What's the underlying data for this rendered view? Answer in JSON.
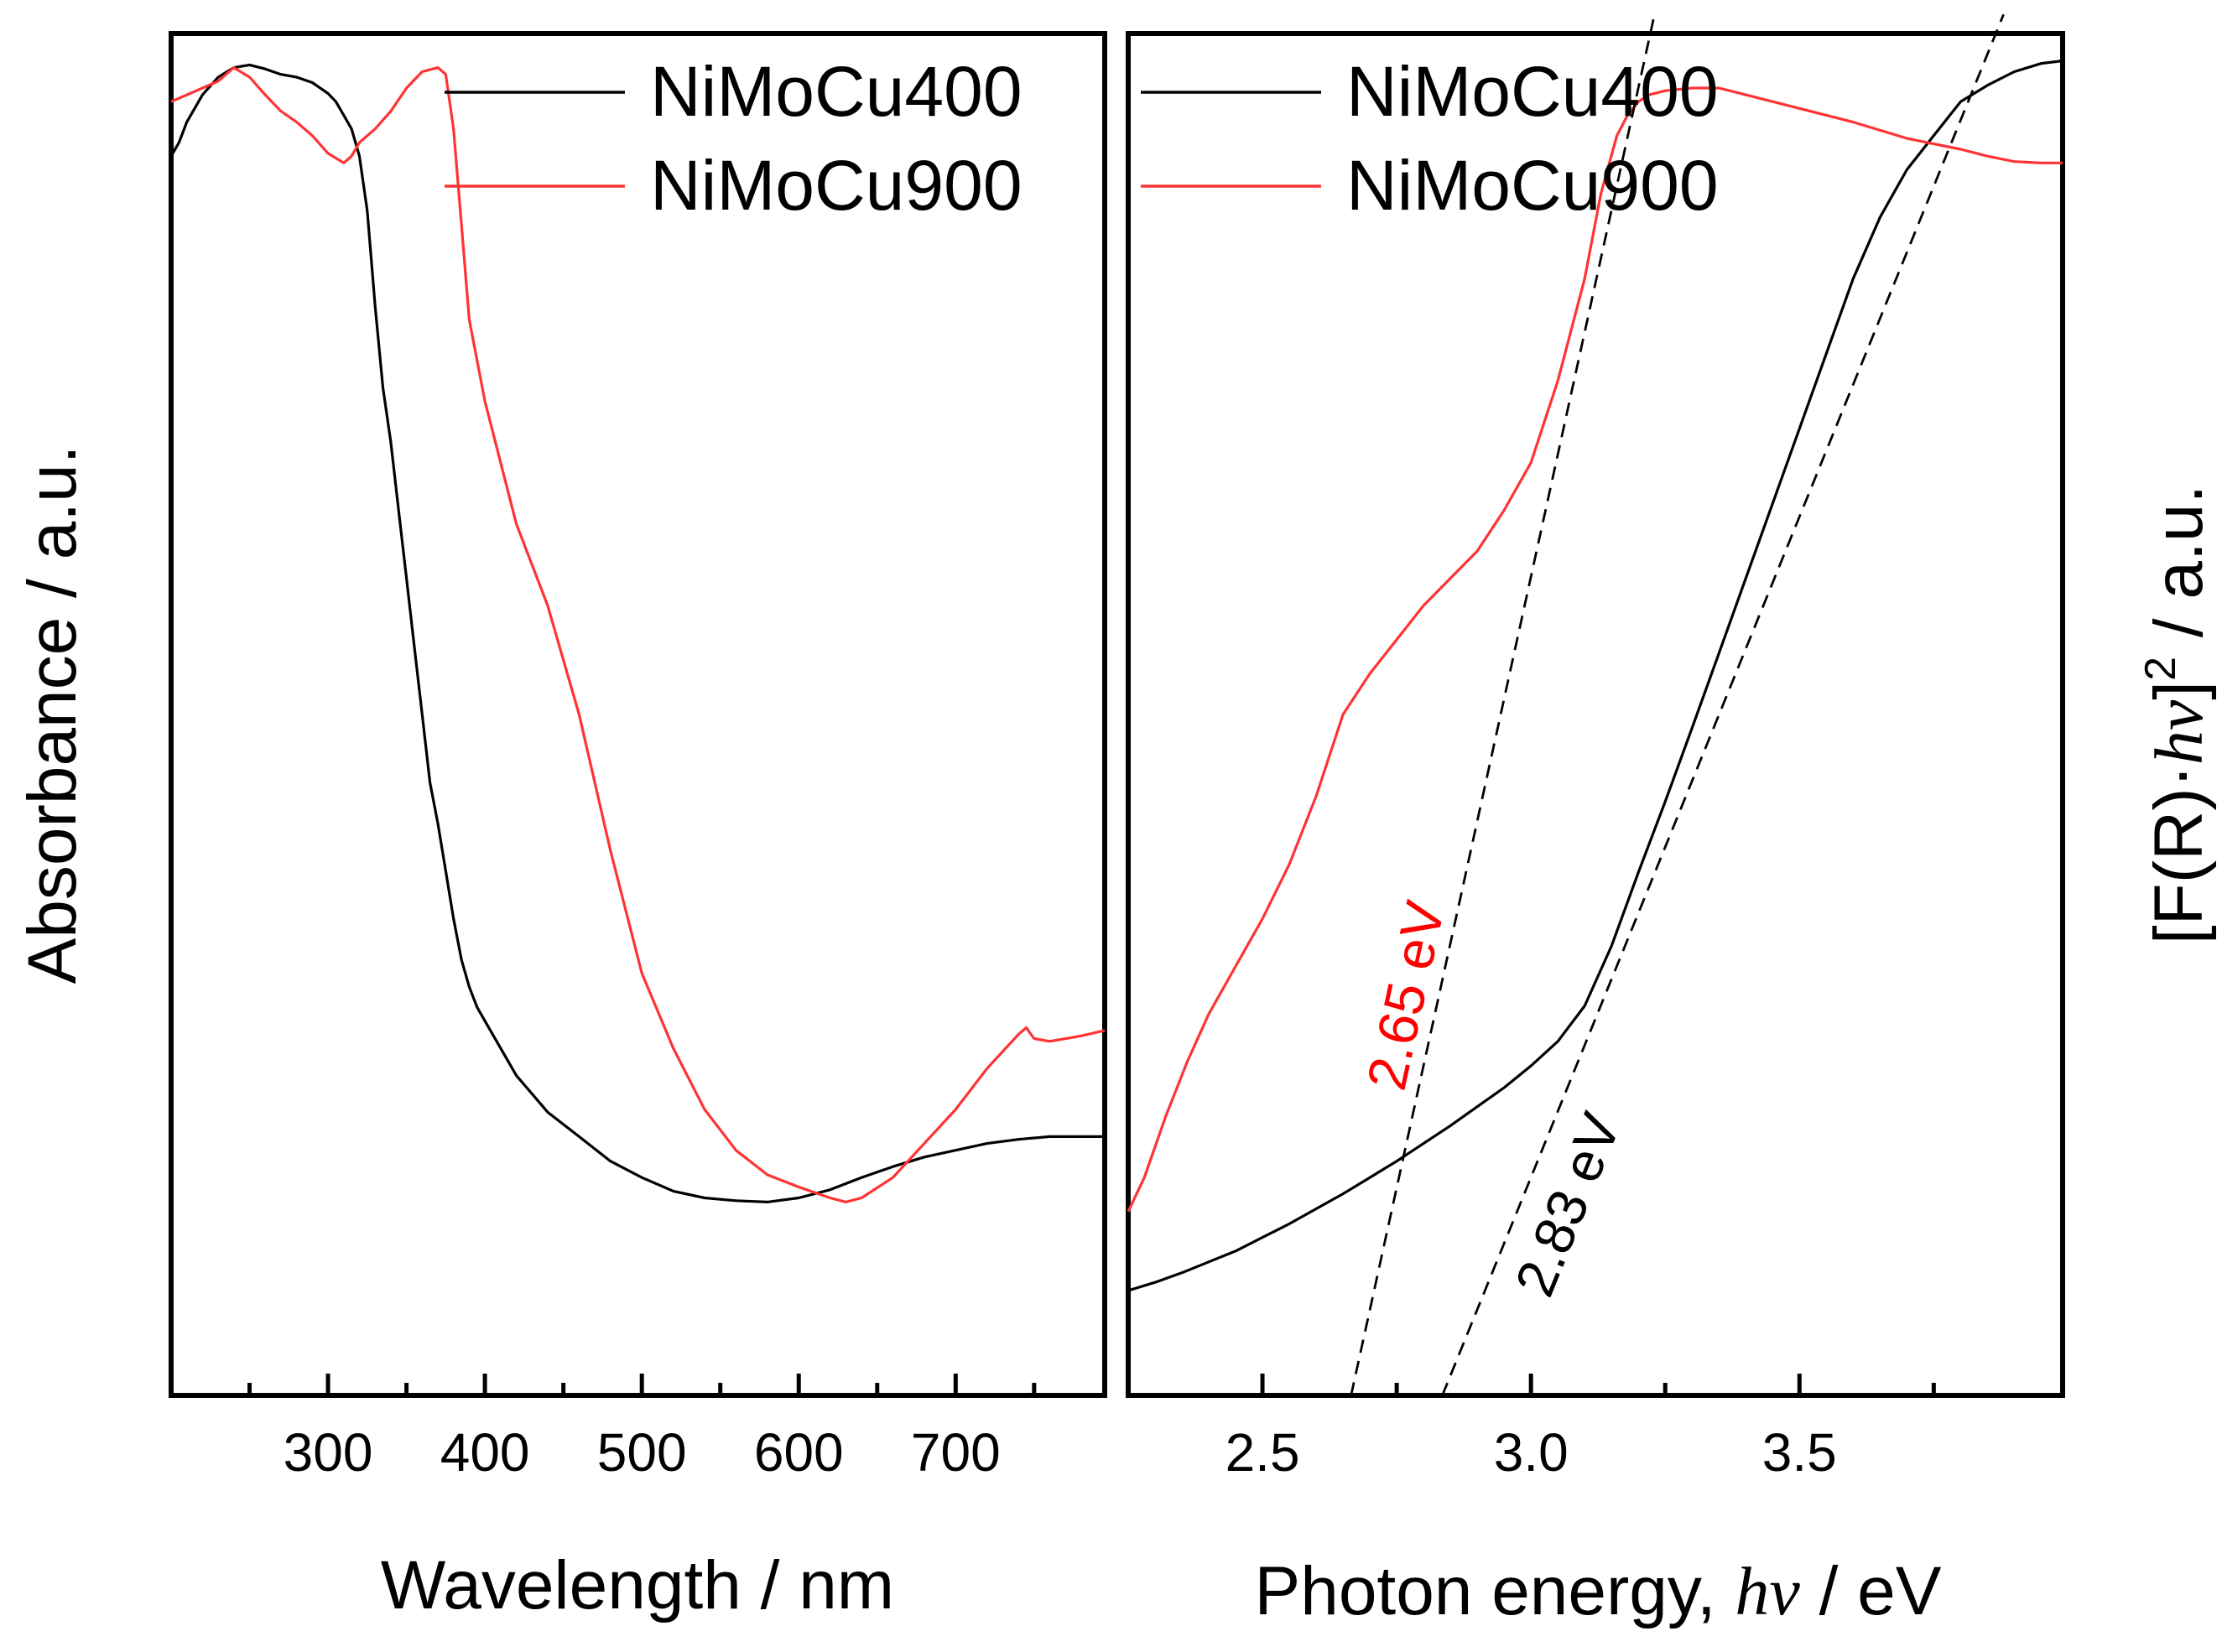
{
  "chart_data": [
    {
      "type": "line",
      "xlabel": "Wavelength / nm",
      "ylabel": "Absorbance / a.u.",
      "xlim": [
        200,
        795
      ],
      "ylim": [
        0,
        1
      ],
      "x_ticks": [
        300,
        400,
        500,
        600,
        700
      ],
      "x_minor_ticks": [
        250,
        350,
        450,
        550,
        650,
        750
      ],
      "legend_position": "top-right",
      "series": [
        {
          "name": "NiMoCu400",
          "color": "#000000",
          "x": [
            200,
            205,
            210,
            220,
            230,
            240,
            250,
            260,
            270,
            280,
            290,
            300,
            305,
            310,
            315,
            320,
            325,
            330,
            335,
            340,
            345,
            350,
            355,
            360,
            365,
            370,
            375,
            380,
            385,
            390,
            395,
            400,
            410,
            420,
            440,
            460,
            480,
            500,
            520,
            540,
            560,
            580,
            600,
            620,
            640,
            660,
            680,
            700,
            720,
            740,
            760,
            780,
            795
          ],
          "values": [
            0.91,
            0.92,
            0.935,
            0.955,
            0.968,
            0.975,
            0.977,
            0.974,
            0.97,
            0.968,
            0.964,
            0.956,
            0.95,
            0.94,
            0.93,
            0.91,
            0.87,
            0.8,
            0.74,
            0.7,
            0.65,
            0.6,
            0.55,
            0.5,
            0.45,
            0.42,
            0.385,
            0.35,
            0.32,
            0.3,
            0.285,
            0.275,
            0.255,
            0.235,
            0.208,
            0.19,
            0.172,
            0.16,
            0.15,
            0.145,
            0.143,
            0.142,
            0.145,
            0.151,
            0.16,
            0.168,
            0.175,
            0.18,
            0.185,
            0.188,
            0.19,
            0.19,
            0.19
          ]
        },
        {
          "name": "NiMoCu900",
          "color": "#ff3333",
          "x": [
            200,
            210,
            220,
            230,
            240,
            250,
            260,
            270,
            280,
            290,
            300,
            310,
            315,
            320,
            330,
            340,
            350,
            360,
            370,
            375,
            380,
            385,
            390,
            400,
            420,
            440,
            460,
            480,
            500,
            520,
            540,
            560,
            580,
            600,
            620,
            630,
            640,
            660,
            680,
            700,
            720,
            740,
            745,
            750,
            760,
            780,
            795
          ],
          "values": [
            0.95,
            0.955,
            0.96,
            0.965,
            0.975,
            0.968,
            0.955,
            0.943,
            0.935,
            0.925,
            0.912,
            0.905,
            0.91,
            0.92,
            0.93,
            0.943,
            0.96,
            0.972,
            0.975,
            0.97,
            0.93,
            0.86,
            0.79,
            0.73,
            0.64,
            0.58,
            0.5,
            0.4,
            0.31,
            0.255,
            0.21,
            0.18,
            0.162,
            0.153,
            0.145,
            0.142,
            0.145,
            0.16,
            0.185,
            0.21,
            0.24,
            0.265,
            0.27,
            0.262,
            0.26,
            0.264,
            0.268
          ]
        }
      ]
    },
    {
      "type": "line",
      "xlabel": "Photon energy, ",
      "xlabel_italic": "hν",
      "xlabel_unit": " / eV",
      "ylabel": "[F(R)·hν]² / a.u.",
      "ylabel_main": "[F(R)·",
      "ylabel_italic": "hν",
      "ylabel_close": "]",
      "ylabel_sup": "2",
      "ylabel_unit": " / a.u.",
      "xlim": [
        2.25,
        3.99
      ],
      "ylim": [
        0,
        1
      ],
      "x_ticks": [
        2.5,
        3.0,
        3.5
      ],
      "x_tick_labels": [
        "2.5",
        "3.0",
        "3.5"
      ],
      "x_minor_ticks": [
        2.75,
        3.25,
        3.75
      ],
      "legend_position": "top-left",
      "series": [
        {
          "name": "NiMoCu400",
          "color": "#000000",
          "x": [
            2.25,
            2.3,
            2.35,
            2.4,
            2.45,
            2.5,
            2.55,
            2.6,
            2.65,
            2.7,
            2.75,
            2.8,
            2.85,
            2.9,
            2.95,
            3.0,
            3.05,
            3.1,
            3.15,
            3.2,
            3.25,
            3.3,
            3.35,
            3.4,
            3.45,
            3.5,
            3.55,
            3.6,
            3.65,
            3.7,
            3.75,
            3.8,
            3.85,
            3.9,
            3.95,
            3.99
          ],
          "values": [
            0.077,
            0.083,
            0.09,
            0.098,
            0.106,
            0.116,
            0.126,
            0.137,
            0.148,
            0.16,
            0.172,
            0.185,
            0.198,
            0.212,
            0.226,
            0.242,
            0.26,
            0.286,
            0.33,
            0.384,
            0.436,
            0.49,
            0.545,
            0.6,
            0.655,
            0.71,
            0.765,
            0.82,
            0.865,
            0.9,
            0.925,
            0.95,
            0.962,
            0.972,
            0.978,
            0.98
          ]
        },
        {
          "name": "NiMoCu900",
          "color": "#ff3333",
          "x": [
            2.25,
            2.28,
            2.32,
            2.36,
            2.4,
            2.45,
            2.5,
            2.55,
            2.6,
            2.65,
            2.7,
            2.75,
            2.8,
            2.85,
            2.9,
            2.95,
            3.0,
            3.05,
            3.1,
            3.13,
            3.16,
            3.18,
            3.2,
            3.22,
            3.25,
            3.3,
            3.35,
            3.4,
            3.5,
            3.6,
            3.7,
            3.8,
            3.85,
            3.9,
            3.95,
            3.99
          ],
          "values": [
            0.135,
            0.16,
            0.205,
            0.245,
            0.28,
            0.315,
            0.35,
            0.39,
            0.44,
            0.5,
            0.53,
            0.555,
            0.58,
            0.6,
            0.62,
            0.65,
            0.685,
            0.745,
            0.82,
            0.882,
            0.925,
            0.94,
            0.95,
            0.955,
            0.958,
            0.96,
            0.96,
            0.955,
            0.945,
            0.935,
            0.923,
            0.915,
            0.91,
            0.906,
            0.905,
            0.905
          ]
        }
      ],
      "tangent_lines": [
        {
          "label": "2.65 eV",
          "color": "#ff0000",
          "from": [
            2.665,
            0.0
          ],
          "to": [
            3.23,
            1.014
          ]
        },
        {
          "label": "2.83 eV",
          "color": "#000000",
          "from": [
            2.835,
            0.0
          ],
          "to": [
            3.88,
            1.014
          ]
        }
      ]
    }
  ]
}
